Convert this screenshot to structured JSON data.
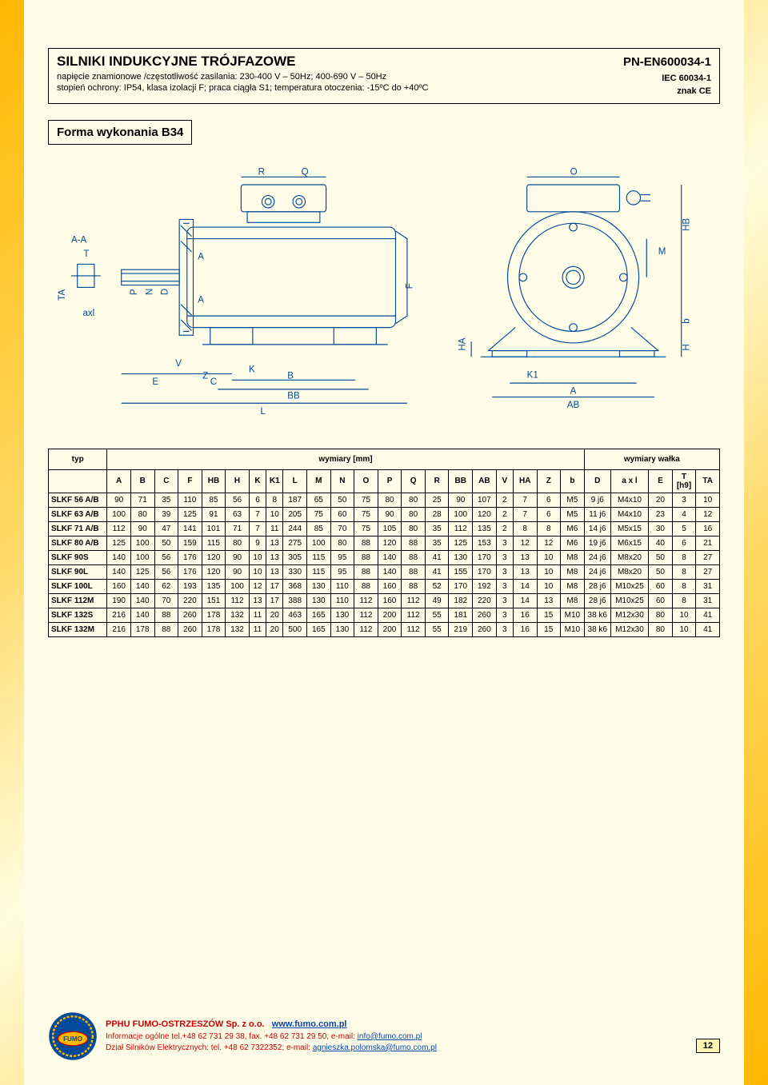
{
  "header": {
    "title": "SILNIKI INDUKCYJNE TRÓJFAZOWE",
    "sub1": "napięcie znamionowe /częstotliwość zasilania: 230-400 V – 50Hz; 400-690 V – 50Hz",
    "sub2": "stopień ochrony: IP54, klasa izolacji F; praca ciągła S1; temperatura otoczenia: -15ºC do +40ºC",
    "right1": "PN-EN600034-1",
    "right2": "IEC 60034-1",
    "right3": "znak CE"
  },
  "form_label": "Forma wykonania B34",
  "drawing_labels": {
    "R": "R",
    "Q": "Q",
    "O": "O",
    "AA": "A-A",
    "T": "T",
    "TA": "TA",
    "P": "P",
    "N": "N",
    "D": "D",
    "A1": "A",
    "A2": "A",
    "F": "F",
    "M": "M",
    "HB": "HB",
    "b": "b",
    "H": "H",
    "HA": "HA",
    "K1": "K1",
    "Aright": "A",
    "AB": "AB",
    "axl": "axl",
    "V": "V",
    "E": "E",
    "Z": "Z",
    "C": "C",
    "K": "K",
    "B": "B",
    "BB": "BB",
    "L": "L"
  },
  "table": {
    "typ_label": "typ",
    "group_dim_mm": "wymiary [mm]",
    "group_shaft": "wymiary wałka",
    "cols_main": [
      "A",
      "B",
      "C",
      "F",
      "HB",
      "H",
      "K",
      "K1",
      "L",
      "M",
      "N",
      "O",
      "P",
      "Q",
      "R",
      "BB",
      "AB",
      "V",
      "HA",
      "Z",
      "b"
    ],
    "cols_shaft": [
      "D",
      "a x l",
      "E",
      "T [h9]",
      "TA"
    ],
    "rows": [
      {
        "typ": "SLKF 56 A/B",
        "m": [
          "90",
          "71",
          "35",
          "110",
          "85",
          "56",
          "6",
          "8",
          "187",
          "65",
          "50",
          "75",
          "80",
          "80",
          "25",
          "90",
          "107",
          "2",
          "7",
          "6",
          "M5"
        ],
        "s": [
          "9 j6",
          "M4x10",
          "20",
          "3",
          "10"
        ]
      },
      {
        "typ": "SLKF 63 A/B",
        "m": [
          "100",
          "80",
          "39",
          "125",
          "91",
          "63",
          "7",
          "10",
          "205",
          "75",
          "60",
          "75",
          "90",
          "80",
          "28",
          "100",
          "120",
          "2",
          "7",
          "6",
          "M5"
        ],
        "s": [
          "11 j6",
          "M4x10",
          "23",
          "4",
          "12"
        ]
      },
      {
        "typ": "SLKF 71 A/B",
        "m": [
          "112",
          "90",
          "47",
          "141",
          "101",
          "71",
          "7",
          "11",
          "244",
          "85",
          "70",
          "75",
          "105",
          "80",
          "35",
          "112",
          "135",
          "2",
          "8",
          "8",
          "M6"
        ],
        "s": [
          "14 j6",
          "M5x15",
          "30",
          "5",
          "16"
        ]
      },
      {
        "typ": "SLKF 80 A/B",
        "m": [
          "125",
          "100",
          "50",
          "159",
          "115",
          "80",
          "9",
          "13",
          "275",
          "100",
          "80",
          "88",
          "120",
          "88",
          "35",
          "125",
          "153",
          "3",
          "12",
          "12",
          "M6"
        ],
        "s": [
          "19 j6",
          "M6x15",
          "40",
          "6",
          "21"
        ]
      },
      {
        "typ": "SLKF 90S",
        "m": [
          "140",
          "100",
          "56",
          "176",
          "120",
          "90",
          "10",
          "13",
          "305",
          "115",
          "95",
          "88",
          "140",
          "88",
          "41",
          "130",
          "170",
          "3",
          "13",
          "10",
          "M8"
        ],
        "s": [
          "24 j6",
          "M8x20",
          "50",
          "8",
          "27"
        ]
      },
      {
        "typ": "SLKF 90L",
        "m": [
          "140",
          "125",
          "56",
          "176",
          "120",
          "90",
          "10",
          "13",
          "330",
          "115",
          "95",
          "88",
          "140",
          "88",
          "41",
          "155",
          "170",
          "3",
          "13",
          "10",
          "M8"
        ],
        "s": [
          "24 j6",
          "M8x20",
          "50",
          "8",
          "27"
        ]
      },
      {
        "typ": "SLKF 100L",
        "m": [
          "160",
          "140",
          "62",
          "193",
          "135",
          "100",
          "12",
          "17",
          "368",
          "130",
          "110",
          "88",
          "160",
          "88",
          "52",
          "170",
          "192",
          "3",
          "14",
          "10",
          "M8"
        ],
        "s": [
          "28 j6",
          "M10x25",
          "60",
          "8",
          "31"
        ]
      },
      {
        "typ": "SLKF 112M",
        "m": [
          "190",
          "140",
          "70",
          "220",
          "151",
          "112",
          "13",
          "17",
          "388",
          "130",
          "110",
          "112",
          "160",
          "112",
          "49",
          "182",
          "220",
          "3",
          "14",
          "13",
          "M8"
        ],
        "s": [
          "28 j6",
          "M10x25",
          "60",
          "8",
          "31"
        ]
      },
      {
        "typ": "SLKF 132S",
        "m": [
          "216",
          "140",
          "88",
          "260",
          "178",
          "132",
          "11",
          "20",
          "463",
          "165",
          "130",
          "112",
          "200",
          "112",
          "55",
          "181",
          "260",
          "3",
          "16",
          "15",
          "M10"
        ],
        "s": [
          "38 k6",
          "M12x30",
          "80",
          "10",
          "41"
        ]
      },
      {
        "typ": "SLKF 132M",
        "m": [
          "216",
          "178",
          "88",
          "260",
          "178",
          "132",
          "11",
          "20",
          "500",
          "165",
          "130",
          "112",
          "200",
          "112",
          "55",
          "219",
          "260",
          "3",
          "16",
          "15",
          "M10"
        ],
        "s": [
          "38 k6",
          "M12x30",
          "80",
          "10",
          "41"
        ]
      }
    ]
  },
  "footer": {
    "company": "PPHU FUMO-OSTRZESZÓW Sp. z o.o.",
    "url": "www.fumo.com.pl",
    "line2_pre": "Informacje ogólne tel.+48 62 731 29 38, fax. +48 62 731 29 50; e-mail: ",
    "email1": "info@fumo.com.pl",
    "line3_pre": "Dział Silników Elektrycznych: tel. +48 62 7322352;  e-mail: ",
    "email2": "agnieszka.polomska@fumo.com.pl",
    "page_num": "12",
    "logo_text": "FUMO"
  },
  "colors": {
    "drawing_stroke": "#004a99",
    "page_bg": "#fffde7",
    "footer_text": "#c00000",
    "link": "#0645ad",
    "border": "#000000"
  }
}
